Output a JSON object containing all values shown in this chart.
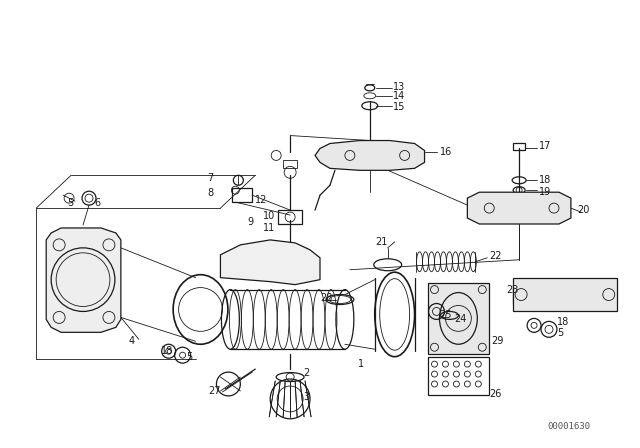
{
  "bg_color": "#ffffff",
  "diagram_color": "#1a1a1a",
  "watermark": "00001630",
  "fig_width": 6.4,
  "fig_height": 4.48,
  "dpi": 100
}
